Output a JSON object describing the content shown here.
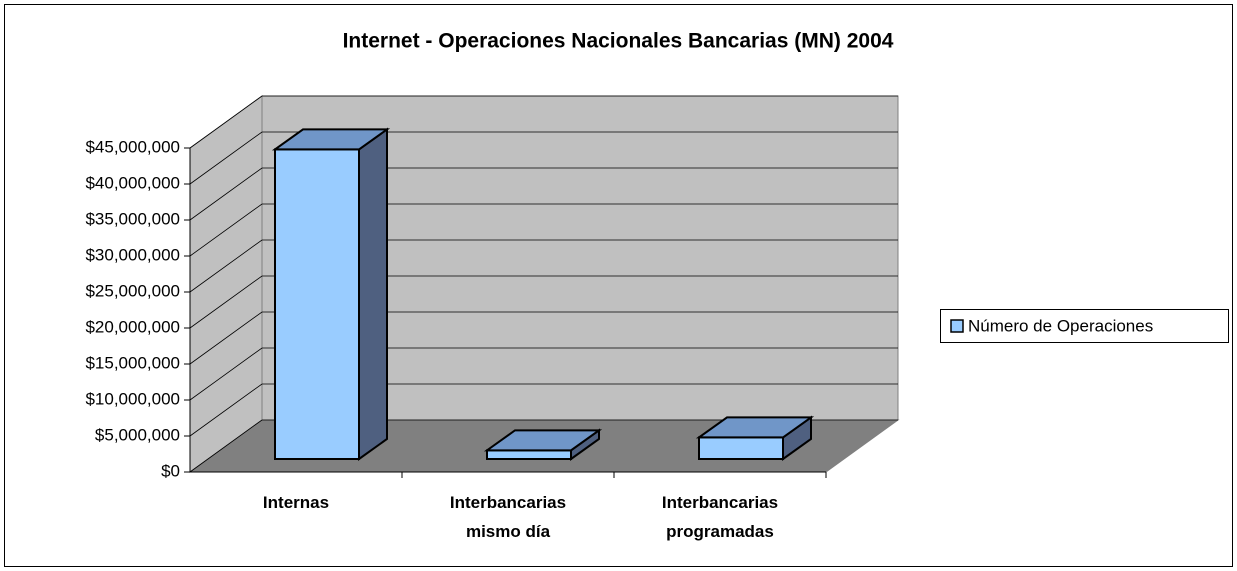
{
  "chart_data": {
    "type": "bar3d",
    "title": "Internet - Operaciones Nacionales Bancarias (MN) 2004",
    "categories": [
      "Internas",
      "Interbancarias mismo día",
      "Interbancarias programadas"
    ],
    "series": [
      {
        "name": "Número de Operaciones",
        "color": "#99ccff",
        "values": [
          43000000,
          1200000,
          3000000
        ]
      }
    ],
    "ylim": [
      0,
      45000000
    ],
    "yticks": [
      {
        "value": 0,
        "label": "$0"
      },
      {
        "value": 5000000,
        "label": "$5,000,000"
      },
      {
        "value": 10000000,
        "label": "$10,000,000"
      },
      {
        "value": 15000000,
        "label": "$15,000,000"
      },
      {
        "value": 20000000,
        "label": "$20,000,000"
      },
      {
        "value": 25000000,
        "label": "$25,000,000"
      },
      {
        "value": 30000000,
        "label": "$30,000,000"
      },
      {
        "value": 35000000,
        "label": "$35,000,000"
      },
      {
        "value": 40000000,
        "label": "$40,000,000"
      },
      {
        "value": 45000000,
        "label": "$45,000,000"
      }
    ],
    "grid": true,
    "legend": "right"
  }
}
